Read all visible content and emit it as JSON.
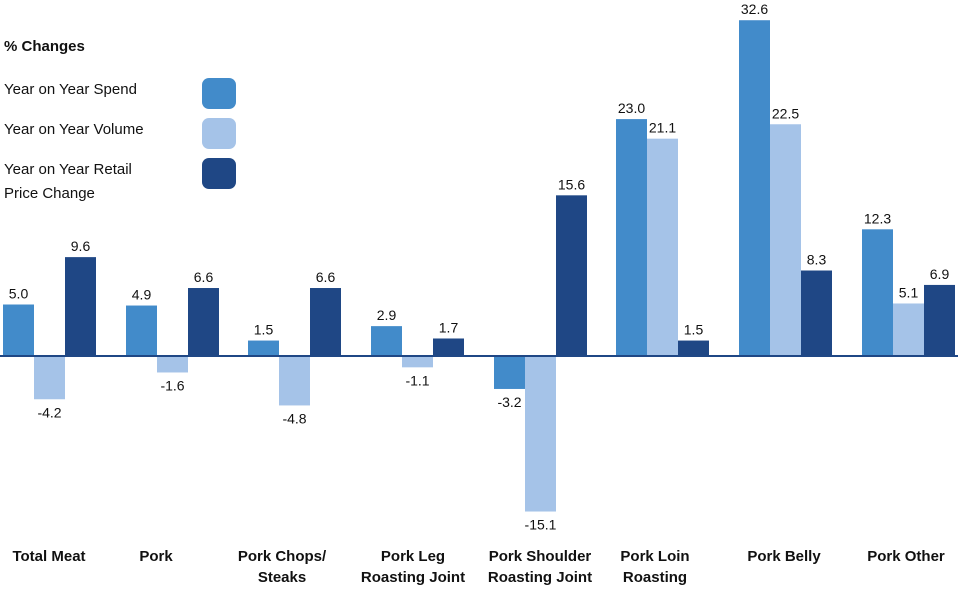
{
  "chart_data": {
    "type": "bar",
    "legend_title": "% Changes",
    "legend_position": "top-left",
    "categories": [
      "Total Meat",
      "Pork",
      "Pork Chops/\nSteaks",
      "Pork Leg\nRoasting Joint",
      "Pork Shoulder\nRoasting Joint",
      "Pork Loin\nRoasting",
      "Pork Belly",
      "Pork Other"
    ],
    "series": [
      {
        "name": "Year on Year Spend",
        "color": "#428bca",
        "values": [
          5.0,
          4.9,
          1.5,
          2.9,
          -3.2,
          23.0,
          32.6,
          12.3
        ]
      },
      {
        "name": "Year on Year Volume",
        "color": "#a5c3e8",
        "values": [
          -4.2,
          -1.6,
          -4.8,
          -1.1,
          -15.1,
          21.1,
          22.5,
          5.1
        ]
      },
      {
        "name": "Year on Year Retail\nPrice Change",
        "color": "#1f4785",
        "values": [
          9.6,
          6.6,
          6.6,
          1.7,
          15.6,
          1.5,
          8.3,
          6.9
        ]
      }
    ],
    "grid": false,
    "baseline_color": "#1f4785"
  }
}
